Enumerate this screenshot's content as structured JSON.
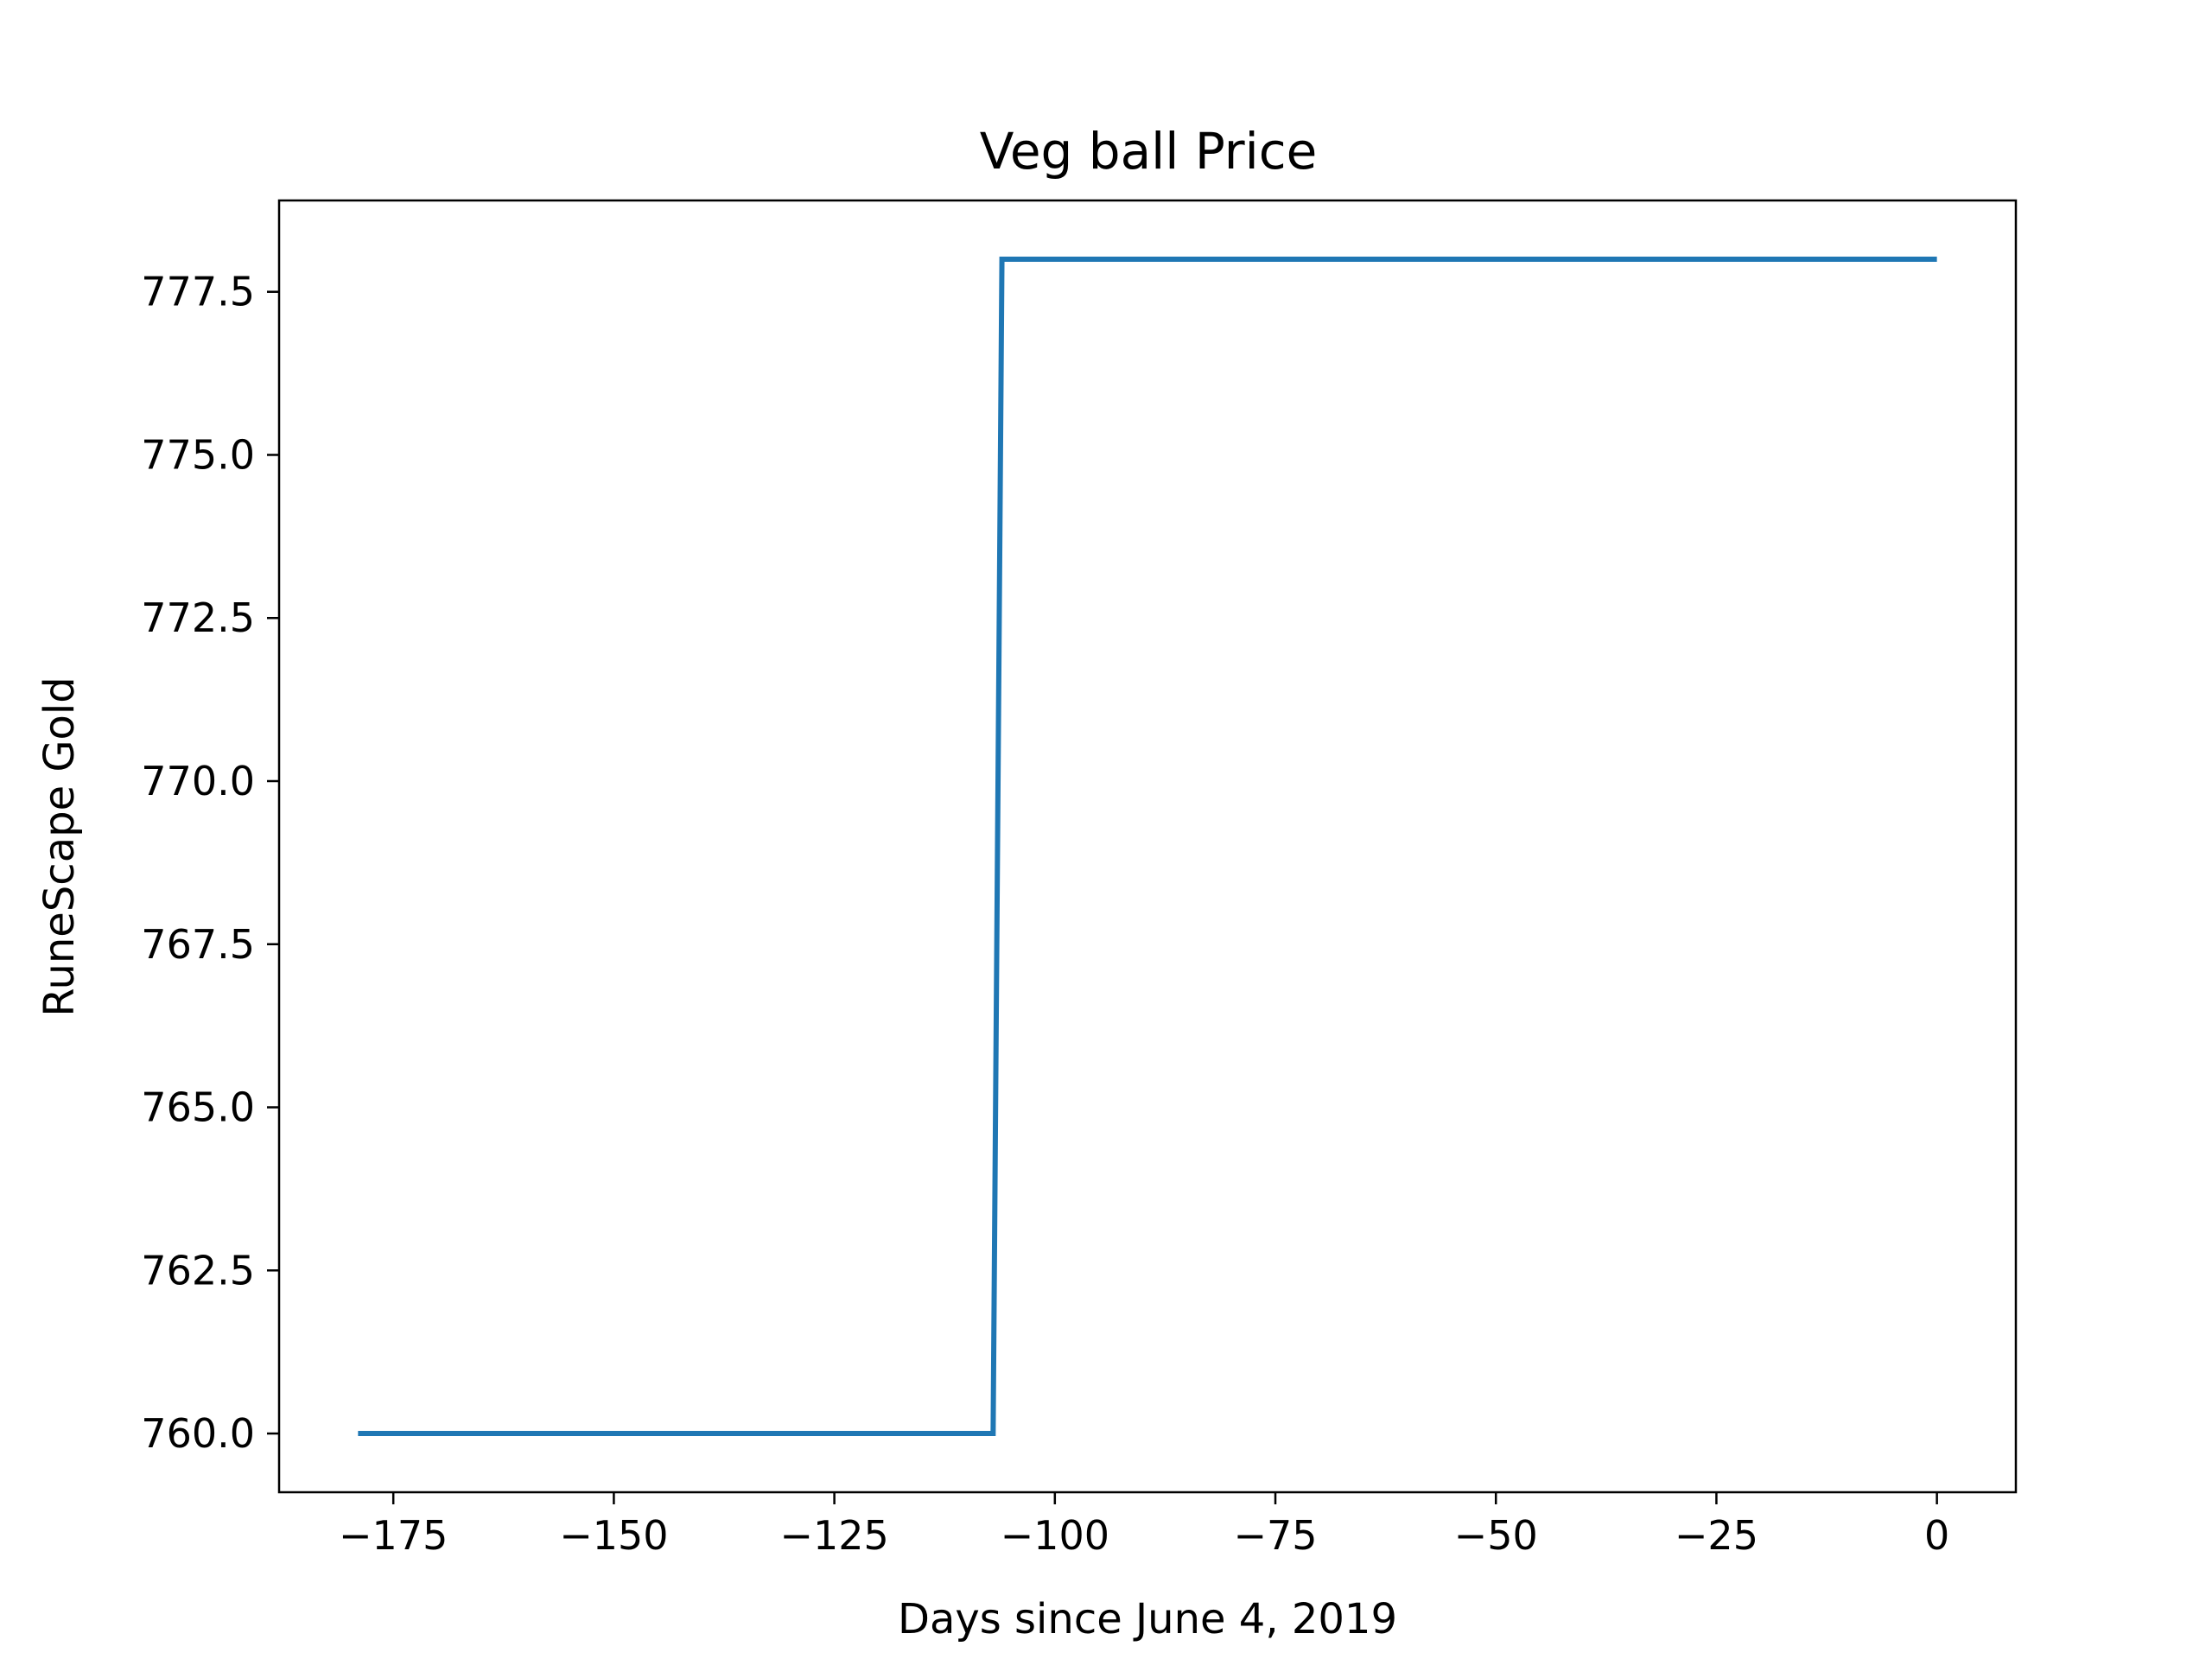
{
  "chart_data": {
    "type": "line",
    "title": "Veg ball Price",
    "xlabel": "Days since June 4, 2019",
    "ylabel": "RuneScape Gold",
    "xlim": [
      -187.95,
      8.95
    ],
    "ylim": [
      759.1,
      778.9
    ],
    "xticks": [
      -175,
      -150,
      -125,
      -100,
      -75,
      -50,
      -25,
      0
    ],
    "xtick_labels": [
      "−175",
      "−150",
      "−125",
      "−100",
      "−75",
      "−50",
      "−25",
      "0"
    ],
    "yticks": [
      760.0,
      762.5,
      765.0,
      767.5,
      770.0,
      772.5,
      775.0,
      777.5
    ],
    "ytick_labels": [
      "760.0",
      "762.5",
      "765.0",
      "767.5",
      "770.0",
      "772.5",
      "775.0",
      "777.5"
    ],
    "grid": false,
    "series": [
      {
        "color": "#1f77b4",
        "x": [
          -179,
          -107,
          -106,
          0
        ],
        "y": [
          760,
          760,
          778,
          778
        ]
      }
    ]
  }
}
